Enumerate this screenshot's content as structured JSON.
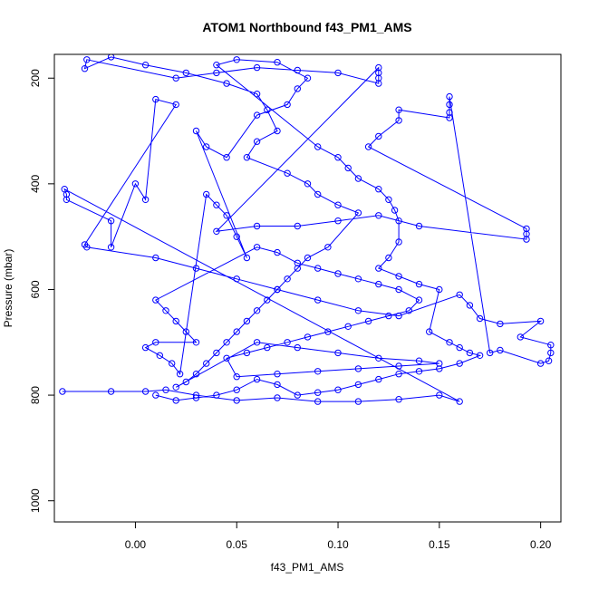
{
  "chart_data": {
    "type": "scatter",
    "title": "ATOM1 Northbound f43_PM1_AMS",
    "xlabel": "f43_PM1_AMS",
    "ylabel": "Pressure (mbar)",
    "xlim": [
      -0.04,
      0.21
    ],
    "ylim": [
      1040,
      155
    ],
    "y_reversed": true,
    "x_ticks": [
      0.0,
      0.05,
      0.1,
      0.15,
      0.2
    ],
    "x_tick_labels": [
      "0.00",
      "0.05",
      "0.10",
      "0.15",
      "0.20"
    ],
    "y_ticks": [
      200,
      400,
      600,
      800,
      1000
    ],
    "y_tick_labels": [
      "200",
      "400",
      "600",
      "800",
      "1000"
    ],
    "grid": false,
    "marker": "open-circle",
    "connected": true,
    "series": [
      {
        "color": "#0000ff",
        "points": [
          [
            -0.036,
            793
          ],
          [
            -0.012,
            793
          ],
          [
            0.005,
            793
          ],
          [
            0.015,
            790
          ],
          [
            0.03,
            800
          ],
          [
            0.05,
            810
          ],
          [
            0.07,
            805
          ],
          [
            0.09,
            812
          ],
          [
            0.11,
            812
          ],
          [
            0.13,
            808
          ],
          [
            0.15,
            800
          ],
          [
            0.16,
            812
          ],
          [
            -0.035,
            410
          ],
          [
            -0.034,
            420
          ],
          [
            -0.034,
            430
          ],
          [
            -0.012,
            470
          ],
          [
            -0.012,
            520
          ],
          [
            0.0,
            400
          ],
          [
            0.005,
            430
          ],
          [
            0.01,
            240
          ],
          [
            0.02,
            250
          ],
          [
            -0.025,
            515
          ],
          [
            -0.024,
            520
          ],
          [
            0.01,
            540
          ],
          [
            0.03,
            560
          ],
          [
            0.05,
            580
          ],
          [
            0.07,
            600
          ],
          [
            0.09,
            620
          ],
          [
            0.11,
            640
          ],
          [
            0.13,
            650
          ],
          [
            0.16,
            610
          ],
          [
            0.165,
            630
          ],
          [
            0.17,
            655
          ],
          [
            0.18,
            665
          ],
          [
            0.2,
            660
          ],
          [
            0.19,
            690
          ],
          [
            0.205,
            705
          ],
          [
            0.205,
            720
          ],
          [
            0.204,
            735
          ],
          [
            0.2,
            740
          ],
          [
            0.18,
            715
          ],
          [
            0.175,
            720
          ],
          [
            0.155,
            235
          ],
          [
            0.155,
            250
          ],
          [
            0.155,
            265
          ],
          [
            0.155,
            275
          ],
          [
            0.13,
            260
          ],
          [
            0.13,
            280
          ],
          [
            0.12,
            310
          ],
          [
            0.115,
            330
          ],
          [
            0.193,
            485
          ],
          [
            0.193,
            495
          ],
          [
            0.193,
            505
          ],
          [
            0.14,
            480
          ],
          [
            0.12,
            460
          ],
          [
            0.1,
            470
          ],
          [
            0.08,
            480
          ],
          [
            0.06,
            480
          ],
          [
            0.04,
            490
          ],
          [
            0.12,
            180
          ],
          [
            0.12,
            190
          ],
          [
            0.12,
            200
          ],
          [
            0.12,
            210
          ],
          [
            0.1,
            190
          ],
          [
            0.08,
            185
          ],
          [
            0.06,
            180
          ],
          [
            0.04,
            190
          ],
          [
            0.02,
            200
          ],
          [
            -0.024,
            165
          ],
          [
            -0.025,
            182
          ],
          [
            -0.012,
            160
          ],
          [
            0.005,
            175
          ],
          [
            0.025,
            190
          ],
          [
            0.045,
            210
          ],
          [
            0.06,
            230
          ],
          [
            0.065,
            260
          ],
          [
            0.07,
            300
          ],
          [
            0.06,
            320
          ],
          [
            0.055,
            350
          ],
          [
            0.075,
            380
          ],
          [
            0.085,
            400
          ],
          [
            0.09,
            420
          ],
          [
            0.1,
            440
          ],
          [
            0.11,
            455
          ],
          [
            0.095,
            520
          ],
          [
            0.085,
            540
          ],
          [
            0.08,
            560
          ],
          [
            0.075,
            580
          ],
          [
            0.07,
            600
          ],
          [
            0.065,
            620
          ],
          [
            0.06,
            640
          ],
          [
            0.055,
            660
          ],
          [
            0.05,
            680
          ],
          [
            0.045,
            700
          ],
          [
            0.04,
            720
          ],
          [
            0.035,
            740
          ],
          [
            0.03,
            760
          ],
          [
            0.025,
            775
          ],
          [
            0.02,
            785
          ],
          [
            0.06,
            700
          ],
          [
            0.08,
            710
          ],
          [
            0.1,
            720
          ],
          [
            0.12,
            730
          ],
          [
            0.14,
            735
          ],
          [
            0.15,
            740
          ],
          [
            0.13,
            745
          ],
          [
            0.11,
            750
          ],
          [
            0.09,
            755
          ],
          [
            0.07,
            760
          ],
          [
            0.05,
            765
          ],
          [
            0.045,
            730
          ],
          [
            0.055,
            720
          ],
          [
            0.065,
            710
          ],
          [
            0.075,
            700
          ],
          [
            0.085,
            690
          ],
          [
            0.095,
            680
          ],
          [
            0.105,
            670
          ],
          [
            0.115,
            660
          ],
          [
            0.125,
            650
          ],
          [
            0.135,
            640
          ],
          [
            0.14,
            620
          ],
          [
            0.13,
            600
          ],
          [
            0.12,
            590
          ],
          [
            0.11,
            580
          ],
          [
            0.1,
            570
          ],
          [
            0.09,
            560
          ],
          [
            0.08,
            550
          ],
          [
            0.07,
            530
          ],
          [
            0.06,
            520
          ],
          [
            0.01,
            620
          ],
          [
            0.015,
            640
          ],
          [
            0.02,
            660
          ],
          [
            0.025,
            680
          ],
          [
            0.03,
            700
          ],
          [
            0.01,
            700
          ],
          [
            0.005,
            710
          ],
          [
            0.012,
            725
          ],
          [
            0.018,
            740
          ],
          [
            0.022,
            760
          ],
          [
            0.035,
            420
          ],
          [
            0.04,
            440
          ],
          [
            0.045,
            460
          ],
          [
            0.05,
            500
          ],
          [
            0.055,
            540
          ],
          [
            0.03,
            300
          ],
          [
            0.035,
            330
          ],
          [
            0.045,
            350
          ],
          [
            0.06,
            270
          ],
          [
            0.075,
            250
          ],
          [
            0.08,
            220
          ],
          [
            0.085,
            200
          ],
          [
            0.07,
            170
          ],
          [
            0.05,
            165
          ],
          [
            0.04,
            175
          ],
          [
            0.09,
            330
          ],
          [
            0.1,
            350
          ],
          [
            0.105,
            370
          ],
          [
            0.11,
            390
          ],
          [
            0.12,
            410
          ],
          [
            0.125,
            430
          ],
          [
            0.128,
            450
          ],
          [
            0.13,
            470
          ],
          [
            0.13,
            510
          ],
          [
            0.125,
            540
          ],
          [
            0.12,
            560
          ],
          [
            0.13,
            575
          ],
          [
            0.14,
            590
          ],
          [
            0.15,
            600
          ],
          [
            0.145,
            680
          ],
          [
            0.155,
            700
          ],
          [
            0.16,
            710
          ],
          [
            0.165,
            720
          ],
          [
            0.17,
            725
          ],
          [
            0.16,
            740
          ],
          [
            0.15,
            750
          ],
          [
            0.14,
            755
          ],
          [
            0.13,
            760
          ],
          [
            0.12,
            770
          ],
          [
            0.11,
            780
          ],
          [
            0.1,
            790
          ],
          [
            0.09,
            795
          ],
          [
            0.08,
            800
          ],
          [
            0.07,
            780
          ],
          [
            0.06,
            770
          ],
          [
            0.05,
            790
          ],
          [
            0.04,
            800
          ],
          [
            0.03,
            805
          ],
          [
            0.02,
            810
          ],
          [
            0.01,
            800
          ]
        ]
      }
    ]
  }
}
